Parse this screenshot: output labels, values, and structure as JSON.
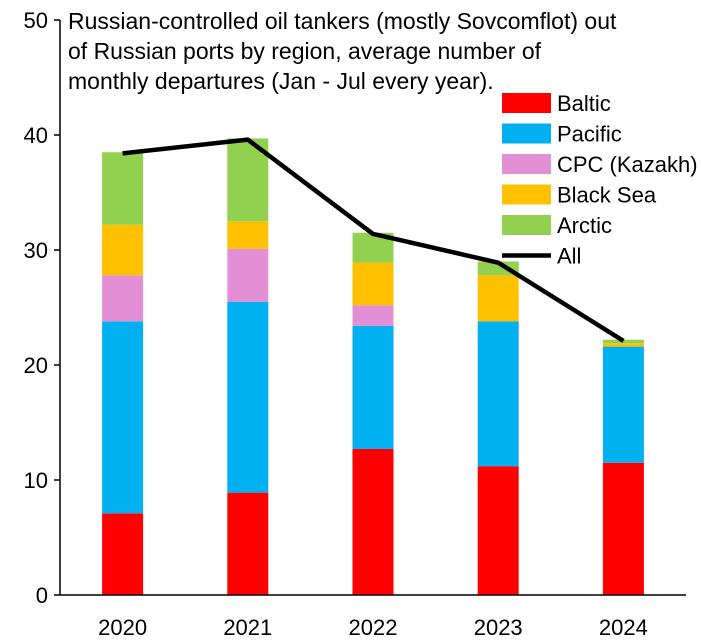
{
  "chart_data": {
    "type": "bar",
    "stacked": true,
    "title_lines": [
      "Russian-controlled oil tankers (mostly Sovcomflot) out",
      "of Russian ports by region, average number of",
      "monthly departures (Jan - Jul every year)."
    ],
    "categories": [
      "2020",
      "2021",
      "2022",
      "2023",
      "2024"
    ],
    "ylim": [
      0,
      50
    ],
    "yticks": [
      0,
      10,
      20,
      30,
      40,
      50
    ],
    "series": [
      {
        "name": "Baltic",
        "color": "#ff0000",
        "values": [
          7.1,
          8.9,
          12.7,
          11.2,
          11.5
        ]
      },
      {
        "name": "Pacific",
        "color": "#00b0f0",
        "values": [
          16.7,
          16.6,
          10.7,
          12.6,
          10.1
        ]
      },
      {
        "name": "CPC (Kazakh)",
        "color": "#e38fd6",
        "values": [
          4.0,
          4.6,
          1.8,
          0.0,
          0.0
        ]
      },
      {
        "name": "Black Sea",
        "color": "#ffc000",
        "values": [
          4.4,
          2.4,
          3.7,
          4.0,
          0.3
        ]
      },
      {
        "name": "Arctic",
        "color": "#92d050",
        "values": [
          6.3,
          7.2,
          2.6,
          1.2,
          0.3
        ]
      }
    ],
    "line": {
      "name": "All",
      "color": "#000000",
      "values": [
        38.4,
        39.6,
        31.4,
        28.9,
        22.1
      ]
    }
  }
}
